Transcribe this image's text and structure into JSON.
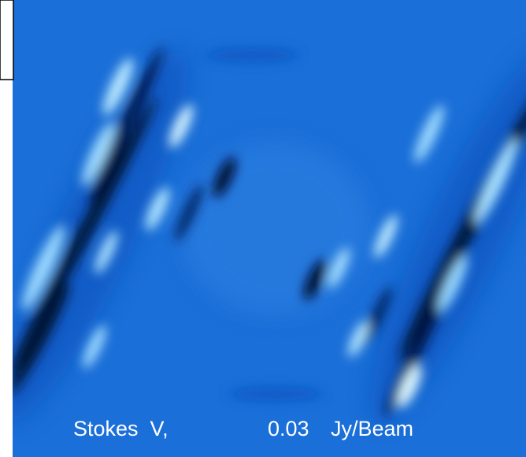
{
  "image": {
    "label": {
      "name": "Stokes  V,",
      "value": "0.03",
      "unit": "Jy/Beam"
    }
  }
}
